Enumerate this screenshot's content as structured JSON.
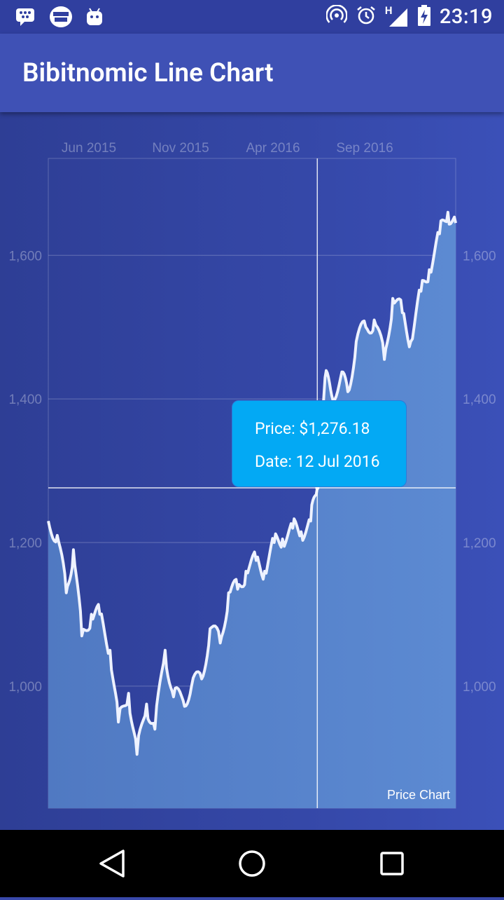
{
  "status_bar": {
    "time": "23:19",
    "network_label": "H",
    "left_icons": [
      "blackberry-messenger-icon",
      "webtoon-icon",
      "android-icon"
    ],
    "right_icons": [
      "hotspot-icon",
      "alarm-icon",
      "signal-icon",
      "battery-charging-icon"
    ]
  },
  "app_bar": {
    "title": "Bibitnomic Line Chart"
  },
  "tooltip": {
    "price_text": "Price: $1,276.18",
    "date_text": "Date: 12 Jul 2016"
  },
  "chart_data": {
    "type": "area",
    "legend": "Price Chart",
    "x_tick_labels": [
      "Jun 2015",
      "Nov 2015",
      "Apr 2016",
      "Sep 2016"
    ],
    "y_tick_labels": [
      "1,000",
      "1,200",
      "1,400",
      "1,600"
    ],
    "y_ticks": [
      1000,
      1200,
      1400,
      1600
    ],
    "ylim": [
      830,
      1735
    ],
    "xlim": [
      "2015-04-20",
      "2017-02-28"
    ],
    "crosshair": {
      "date": "2016-07-12",
      "price": 1276.18
    },
    "series": [
      {
        "x": [
          "2015-04-20",
          "2015-05-05",
          "2015-05-20",
          "2015-06-01",
          "2015-06-15",
          "2015-07-01",
          "2015-07-15",
          "2015-08-01",
          "2015-08-15",
          "2015-09-01",
          "2015-09-15",
          "2015-10-01",
          "2015-10-15",
          "2015-11-01",
          "2015-11-15",
          "2015-12-01",
          "2015-12-15",
          "2016-01-01",
          "2016-01-15",
          "2016-02-01",
          "2016-02-15",
          "2016-03-01",
          "2016-03-15",
          "2016-04-01",
          "2016-04-15",
          "2016-05-01",
          "2016-05-15",
          "2016-06-01",
          "2016-06-15",
          "2016-07-01",
          "2016-07-12",
          "2016-07-25",
          "2016-08-05",
          "2016-08-20",
          "2016-09-01",
          "2016-09-15",
          "2016-10-01",
          "2016-10-15",
          "2016-11-01",
          "2016-11-15",
          "2016-12-01",
          "2016-12-15",
          "2017-01-01",
          "2017-01-15",
          "2017-02-01",
          "2017-02-15",
          "2017-02-28"
        ],
        "y": [
          1230,
          1210,
          1130,
          1190,
          1070,
          1100,
          1100,
          1050,
          950,
          990,
          905,
          975,
          940,
          1050,
          985,
          980,
          1000,
          1010,
          1080,
          1060,
          1130,
          1135,
          1160,
          1175,
          1160,
          1200,
          1205,
          1220,
          1215,
          1230,
          1276,
          1430,
          1405,
          1430,
          1410,
          1480,
          1500,
          1510,
          1455,
          1540,
          1520,
          1480,
          1550,
          1580,
          1630,
          1660,
          1645
        ]
      }
    ]
  }
}
